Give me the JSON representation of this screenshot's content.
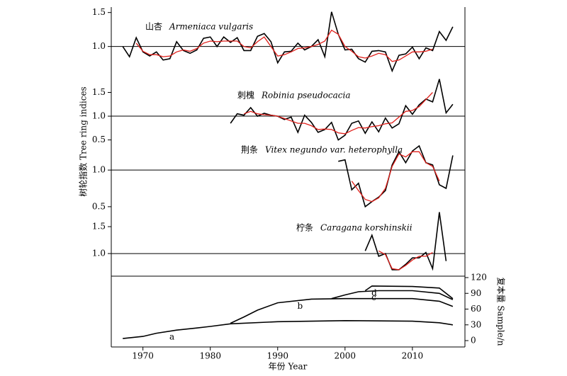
{
  "chart_data": [
    {
      "type": "line",
      "annotation": {
        "zh": "山杏",
        "latin": "Armeniaca vulgaris"
      },
      "ylabel": "树轮指数 Tree ring indices",
      "ylim": [
        0.59,
        1.58
      ],
      "yticks": [
        {
          "value": 1,
          "label": "1.0"
        },
        1.5
      ],
      "refline": 1,
      "series": [
        {
          "color": "#000000",
          "x": [
            1967,
            1968,
            1969,
            1970,
            1971,
            1972,
            1973,
            1974,
            1975,
            1976,
            1977,
            1978,
            1979,
            1980,
            1981,
            1982,
            1983,
            1984,
            1985,
            1986,
            1987,
            1988,
            1989,
            1990,
            1991,
            1992,
            1993,
            1994,
            1995,
            1996,
            1997,
            1998,
            1999,
            2000,
            2001,
            2002,
            2003,
            2004,
            2005,
            2006,
            2007,
            2008,
            2009,
            2010,
            2011,
            2012,
            2013,
            2014,
            2015,
            2016
          ],
          "values": [
            1.0,
            0.85,
            1.13,
            0.92,
            0.86,
            0.92,
            0.8,
            0.82,
            1.07,
            0.94,
            0.9,
            0.95,
            1.12,
            1.14,
            1.0,
            1.14,
            1.06,
            1.13,
            0.94,
            0.94,
            1.15,
            1.19,
            1.07,
            0.76,
            0.92,
            0.93,
            1.05,
            0.95,
            1.0,
            1.1,
            0.85,
            1.51,
            1.18,
            0.95,
            0.96,
            0.82,
            0.77,
            0.93,
            0.94,
            0.92,
            0.64,
            0.87,
            0.89,
            0.99,
            0.82,
            0.98,
            0.94,
            1.22,
            1.09,
            1.29
          ]
        },
        {
          "color": "#e0201b",
          "x": [
            1969,
            1970,
            1971,
            1972,
            1973,
            1974,
            1975,
            1976,
            1977,
            1978,
            1979,
            1980,
            1981,
            1982,
            1983,
            1984,
            1985,
            1986,
            1987,
            1988,
            1989,
            1990,
            1991,
            1992,
            1993,
            1994,
            1995,
            1996,
            1997,
            1998,
            1999,
            2000,
            2001,
            2002,
            2003,
            2004,
            2005,
            2006,
            2007,
            2008,
            2009,
            2010,
            2011,
            2012,
            2013
          ],
          "values": [
            1.05,
            0.93,
            0.88,
            0.88,
            0.85,
            0.86,
            0.92,
            0.95,
            0.93,
            0.97,
            1.05,
            1.08,
            1.07,
            1.08,
            1.08,
            1.08,
            1.0,
            0.98,
            1.07,
            1.14,
            1.0,
            0.86,
            0.88,
            0.92,
            0.97,
            0.98,
            1.0,
            1.03,
            1.08,
            1.24,
            1.18,
            1.0,
            0.93,
            0.85,
            0.83,
            0.86,
            0.9,
            0.88,
            0.78,
            0.8,
            0.86,
            0.92,
            0.92,
            0.93,
            0.96
          ]
        }
      ]
    },
    {
      "type": "line",
      "annotation": {
        "zh": "刺槐",
        "latin": "Robinia pseudocacia"
      },
      "ylim": [
        0.39,
        1.88
      ],
      "yticks": [
        0.5,
        {
          "value": 1,
          "label": "1.0"
        },
        1.5
      ],
      "refline": 1,
      "series": [
        {
          "color": "#000000",
          "x": [
            1983,
            1984,
            1985,
            1986,
            1987,
            1988,
            1989,
            1990,
            1991,
            1992,
            1993,
            1994,
            1995,
            1996,
            1997,
            1998,
            1999,
            2000,
            2001,
            2002,
            2003,
            2004,
            2005,
            2006,
            2007,
            2008,
            2009,
            2010,
            2011,
            2012,
            2013,
            2014,
            2015,
            2016
          ],
          "values": [
            0.85,
            1.05,
            1.02,
            1.18,
            1.0,
            1.06,
            1.02,
            1.0,
            0.93,
            0.98,
            0.66,
            1.02,
            0.87,
            0.66,
            0.72,
            0.87,
            0.5,
            0.6,
            0.85,
            0.9,
            0.64,
            0.88,
            0.67,
            0.96,
            0.75,
            0.84,
            1.22,
            1.04,
            1.24,
            1.36,
            1.3,
            1.78,
            1.07,
            1.25
          ]
        },
        {
          "color": "#e0201b",
          "x": [
            1985,
            1986,
            1987,
            1988,
            1989,
            1990,
            1991,
            1992,
            1993,
            1994,
            1995,
            1996,
            1997,
            1998,
            1999,
            2000,
            2001,
            2002,
            2003,
            2004,
            2005,
            2006,
            2007,
            2008,
            2009,
            2010,
            2011,
            2012,
            2013
          ],
          "values": [
            1.05,
            1.1,
            1.05,
            1.03,
            1.02,
            1.0,
            0.95,
            0.9,
            0.85,
            0.85,
            0.8,
            0.72,
            0.73,
            0.72,
            0.65,
            0.63,
            0.7,
            0.76,
            0.75,
            0.78,
            0.8,
            0.84,
            0.86,
            0.98,
            1.1,
            1.12,
            1.2,
            1.35,
            1.5
          ]
        }
      ]
    },
    {
      "type": "line",
      "annotation": {
        "zh": "荆条",
        "latin": "Vitex negundo var. heterophylla"
      },
      "ylim": [
        0.47,
        1.34
      ],
      "yticks": [
        0.5,
        {
          "value": 1,
          "label": "1.0"
        }
      ],
      "refline": 1,
      "series": [
        {
          "color": "#000000",
          "x": [
            1999,
            2000,
            2001,
            2002,
            2003,
            2004,
            2005,
            2006,
            2007,
            2008,
            2009,
            2010,
            2011,
            2012,
            2013,
            2014,
            2015,
            2016
          ],
          "values": [
            1.12,
            1.14,
            0.73,
            0.82,
            0.5,
            0.57,
            0.63,
            0.72,
            1.07,
            1.25,
            1.1,
            1.26,
            1.33,
            1.1,
            1.07,
            0.8,
            0.75,
            1.2
          ]
        },
        {
          "color": "#e0201b",
          "x": [
            2001,
            2002,
            2003,
            2004,
            2005,
            2006,
            2007,
            2008,
            2009,
            2010,
            2011,
            2012,
            2013,
            2014
          ],
          "values": [
            0.85,
            0.72,
            0.6,
            0.57,
            0.62,
            0.75,
            1.05,
            1.22,
            1.18,
            1.25,
            1.25,
            1.1,
            1.05,
            0.85
          ]
        }
      ]
    },
    {
      "type": "line",
      "annotation": {
        "zh": "柠条",
        "latin": "Caragana korshinskii"
      },
      "ylim": [
        0.58,
        1.83
      ],
      "yticks": [
        {
          "value": 1,
          "label": "1.0"
        },
        1.5
      ],
      "refline": 1,
      "series": [
        {
          "color": "#000000",
          "x": [
            2003,
            2004,
            2005,
            2006,
            2007,
            2008,
            2009,
            2010,
            2011,
            2012,
            2013,
            2014,
            2015
          ],
          "values": [
            1.05,
            1.34,
            0.95,
            1.0,
            0.7,
            0.7,
            0.8,
            0.92,
            0.92,
            1.02,
            0.72,
            1.77,
            0.86
          ]
        },
        {
          "color": "#e0201b",
          "x": [
            2005,
            2006,
            2007,
            2008,
            2009,
            2010,
            2011,
            2012,
            2013
          ],
          "values": [
            1.05,
            0.98,
            0.72,
            0.7,
            0.78,
            0.88,
            0.95,
            0.95,
            1.02
          ]
        }
      ]
    },
    {
      "type": "line",
      "xlabel": "年份 Year",
      "y2label": "复本量 Sample/n",
      "xlim": [
        1965.3,
        2017.8
      ],
      "xticks": [
        1970,
        1980,
        1990,
        2000,
        2010
      ],
      "y2lim": [
        -12.1,
        122.7
      ],
      "y2ticks": [
        0,
        30,
        60,
        90,
        120
      ],
      "series": [
        {
          "name": "a",
          "axis": "y2",
          "color": "#000000",
          "x": [
            1967,
            1970,
            1972,
            1975,
            1978,
            1980,
            1983,
            1990,
            2000,
            2010,
            2014,
            2016
          ],
          "values": [
            4,
            8,
            14,
            20,
            24,
            27,
            32,
            36,
            38,
            37,
            34,
            30
          ]
        },
        {
          "name": "b",
          "axis": "y2",
          "color": "#000000",
          "x": [
            1983,
            1985,
            1987,
            1990,
            1995,
            2000,
            2010,
            2014,
            2016
          ],
          "values": [
            33,
            45,
            58,
            72,
            79,
            80,
            80,
            75,
            65
          ]
        },
        {
          "name": "c",
          "axis": "y2",
          "color": "#000000",
          "x": [
            1998,
            2000,
            2002,
            2005,
            2010,
            2014,
            2016
          ],
          "values": [
            80,
            87,
            93,
            95,
            95,
            90,
            78
          ]
        },
        {
          "name": "d",
          "axis": "y2",
          "color": "#000000",
          "x": [
            2003,
            2004,
            2010,
            2014,
            2016
          ],
          "values": [
            95,
            104,
            103,
            100,
            80
          ]
        }
      ]
    }
  ]
}
